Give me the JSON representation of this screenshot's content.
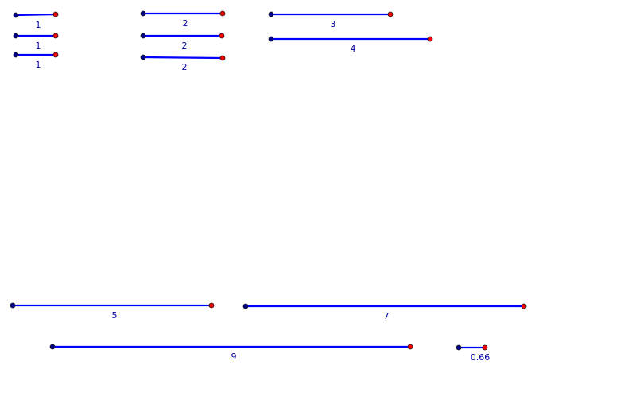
{
  "colors": {
    "segment": "#0000ff",
    "label": "#0000aa",
    "start_point": "#00008b",
    "end_point": "#ff0000"
  },
  "segments": [
    {
      "label": "1"
    },
    {
      "label": "1"
    },
    {
      "label": "1"
    },
    {
      "label": "2"
    },
    {
      "label": "2"
    },
    {
      "label": "2"
    },
    {
      "label": "3"
    },
    {
      "label": "4"
    },
    {
      "label": "5"
    },
    {
      "label": "7"
    },
    {
      "label": "9"
    },
    {
      "label": "0.66"
    }
  ]
}
